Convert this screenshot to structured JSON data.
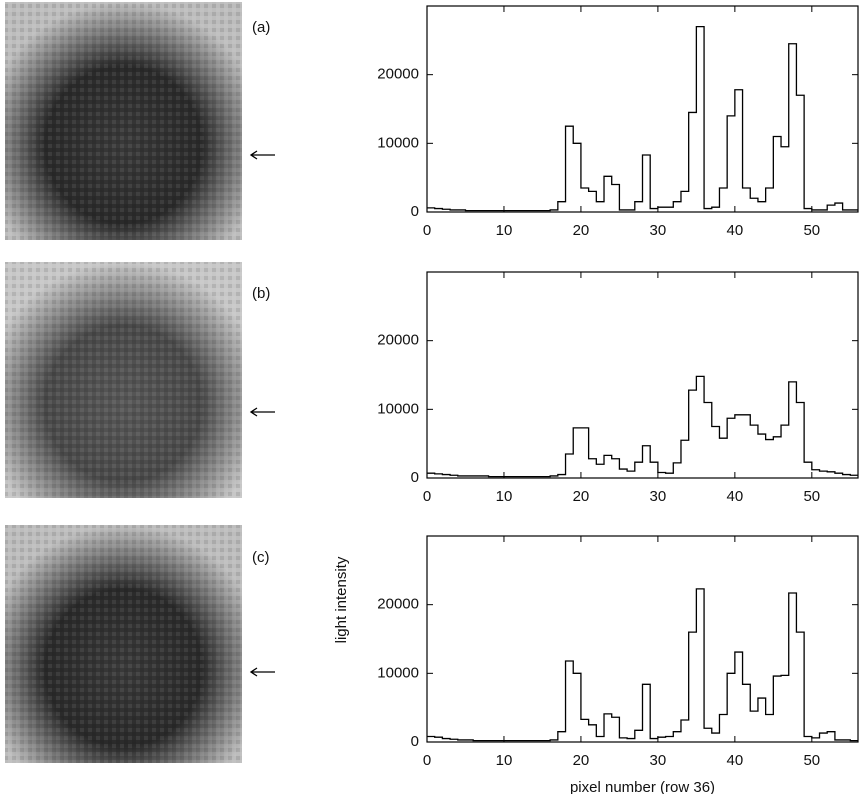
{
  "chart_data": [
    {
      "type": "step",
      "label": "(a)",
      "x": [
        0,
        1,
        2,
        3,
        4,
        5,
        6,
        7,
        8,
        9,
        10,
        11,
        12,
        13,
        14,
        15,
        16,
        17,
        18,
        19,
        20,
        21,
        22,
        23,
        24,
        25,
        26,
        27,
        28,
        29,
        30,
        31,
        32,
        33,
        34,
        35,
        36,
        37,
        38,
        39,
        40,
        41,
        42,
        43,
        44,
        45,
        46,
        47,
        48,
        49,
        50,
        51,
        52,
        53,
        54,
        55
      ],
      "values": [
        600,
        500,
        400,
        300,
        300,
        200,
        200,
        200,
        200,
        200,
        200,
        200,
        200,
        200,
        200,
        200,
        300,
        1500,
        12500,
        10000,
        3500,
        3000,
        1500,
        5200,
        4000,
        300,
        300,
        1500,
        8300,
        500,
        700,
        700,
        1500,
        3000,
        14500,
        27000,
        500,
        700,
        3500,
        14000,
        17800,
        3500,
        2000,
        1500,
        3500,
        11000,
        9500,
        24500,
        17000,
        500,
        300,
        300,
        1000,
        1300,
        300,
        300
      ],
      "color": "#000000",
      "xlim": [
        0,
        56
      ],
      "ylim": [
        0,
        30000
      ],
      "xticks": [
        0,
        10,
        20,
        30,
        40,
        50
      ],
      "yticks": [
        0,
        10000,
        20000
      ]
    },
    {
      "type": "step",
      "label": "(b)",
      "x": [
        0,
        1,
        2,
        3,
        4,
        5,
        6,
        7,
        8,
        9,
        10,
        11,
        12,
        13,
        14,
        15,
        16,
        17,
        18,
        19,
        20,
        21,
        22,
        23,
        24,
        25,
        26,
        27,
        28,
        29,
        30,
        31,
        32,
        33,
        34,
        35,
        36,
        37,
        38,
        39,
        40,
        41,
        42,
        43,
        44,
        45,
        46,
        47,
        48,
        49,
        50,
        51,
        52,
        53,
        54,
        55
      ],
      "values": [
        700,
        600,
        500,
        400,
        300,
        300,
        300,
        300,
        200,
        200,
        200,
        200,
        200,
        200,
        200,
        200,
        300,
        500,
        3500,
        7300,
        7300,
        2800,
        2000,
        3300,
        2800,
        1300,
        1000,
        2300,
        4700,
        2300,
        800,
        700,
        2200,
        5500,
        12800,
        14800,
        11000,
        7500,
        5800,
        8700,
        9200,
        9200,
        7700,
        6400,
        5600,
        6000,
        7700,
        14000,
        11000,
        2300,
        1200,
        1000,
        900,
        700,
        500,
        400
      ],
      "color": "#000000",
      "xlim": [
        0,
        56
      ],
      "ylim": [
        0,
        30000
      ],
      "xticks": [
        0,
        10,
        20,
        30,
        40,
        50
      ],
      "yticks": [
        0,
        10000,
        20000
      ]
    },
    {
      "type": "step",
      "label": "(c)",
      "xlabel": "pixel number (row 36)",
      "ylabel": "light intensity",
      "x": [
        0,
        1,
        2,
        3,
        4,
        5,
        6,
        7,
        8,
        9,
        10,
        11,
        12,
        13,
        14,
        15,
        16,
        17,
        18,
        19,
        20,
        21,
        22,
        23,
        24,
        25,
        26,
        27,
        28,
        29,
        30,
        31,
        32,
        33,
        34,
        35,
        36,
        37,
        38,
        39,
        40,
        41,
        42,
        43,
        44,
        45,
        46,
        47,
        48,
        49,
        50,
        51,
        52,
        53,
        54,
        55
      ],
      "values": [
        800,
        700,
        500,
        400,
        300,
        300,
        200,
        200,
        200,
        200,
        200,
        200,
        200,
        200,
        200,
        200,
        300,
        1500,
        11800,
        10000,
        3300,
        2500,
        800,
        4100,
        3600,
        600,
        500,
        1700,
        8400,
        500,
        700,
        800,
        1500,
        3200,
        16000,
        22300,
        2000,
        1300,
        4000,
        10000,
        13100,
        8400,
        4500,
        6400,
        4000,
        9600,
        9700,
        21700,
        16000,
        800,
        600,
        1300,
        1500,
        300,
        300,
        200
      ],
      "color": "#000000",
      "xlim": [
        0,
        56
      ],
      "ylim": [
        0,
        30000
      ],
      "xticks": [
        0,
        10,
        20,
        30,
        40,
        50
      ],
      "yticks": [
        0,
        10000,
        20000
      ]
    }
  ]
}
